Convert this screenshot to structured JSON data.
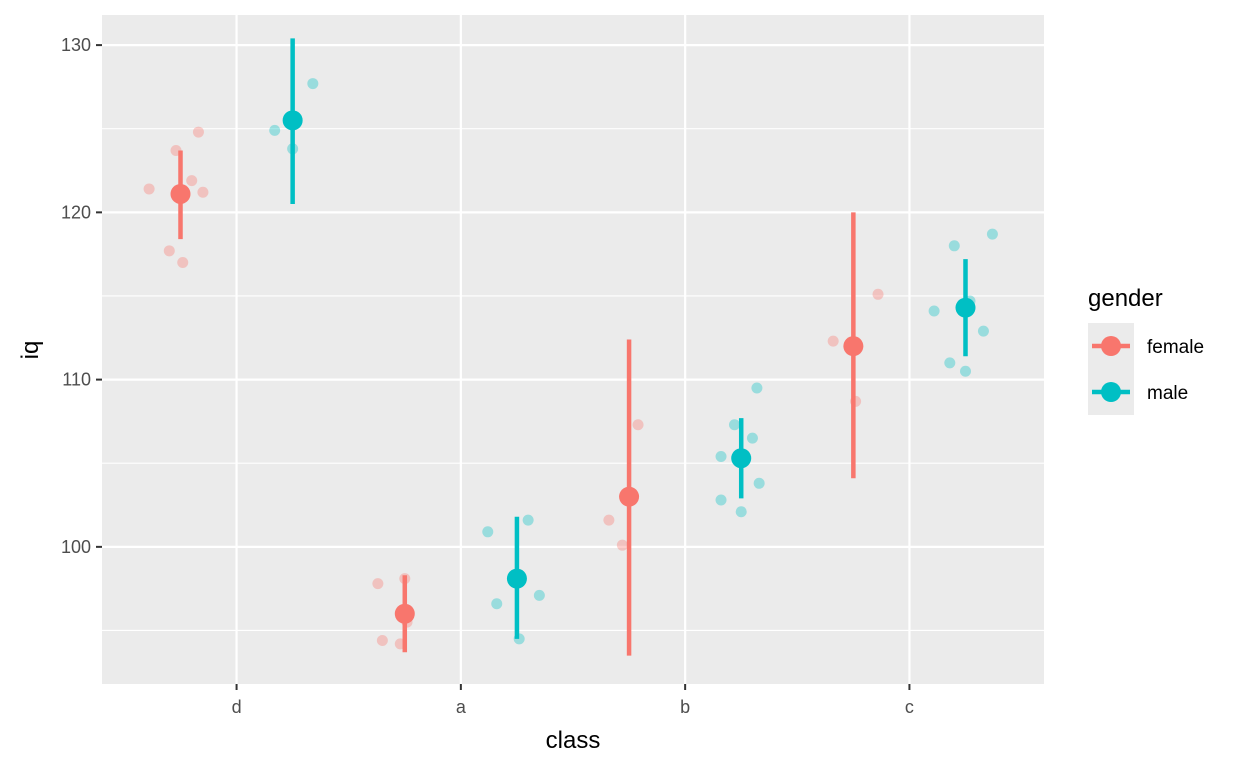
{
  "chart_data": {
    "type": "scatter",
    "title": "",
    "xlabel": "class",
    "ylabel": "iq",
    "categories": [
      "d",
      "a",
      "b",
      "c"
    ],
    "ylim": [
      91.8,
      131.8
    ],
    "yticks": [
      100,
      110,
      120,
      130
    ],
    "yminor": [
      95,
      105,
      115,
      125
    ],
    "grid": true,
    "legend": {
      "title": "gender",
      "position": "right",
      "entries": [
        {
          "name": "female",
          "color": "#F8766D"
        },
        {
          "name": "male",
          "color": "#00BFC4"
        }
      ]
    },
    "series": [
      {
        "name": "female",
        "color": "#F8766D",
        "summary": [
          {
            "category": "d",
            "mean": 121.1,
            "lower": 118.4,
            "upper": 123.7
          },
          {
            "category": "a",
            "mean": 96.0,
            "lower": 93.7,
            "upper": 98.3
          },
          {
            "category": "b",
            "mean": 103.0,
            "lower": 93.5,
            "upper": 112.4
          },
          {
            "category": "c",
            "mean": 112.0,
            "lower": 104.1,
            "upper": 120.0
          }
        ],
        "points": [
          {
            "category": "d",
            "jitter": -0.39,
            "y": 121.4
          },
          {
            "category": "d",
            "jitter": -0.3,
            "y": 117.7
          },
          {
            "category": "d",
            "jitter": -0.27,
            "y": 123.7
          },
          {
            "category": "d",
            "jitter": -0.24,
            "y": 117.0
          },
          {
            "category": "d",
            "jitter": -0.2,
            "y": 121.9
          },
          {
            "category": "d",
            "jitter": -0.17,
            "y": 124.8
          },
          {
            "category": "d",
            "jitter": -0.15,
            "y": 121.2
          },
          {
            "category": "a",
            "jitter": -0.37,
            "y": 97.8
          },
          {
            "category": "a",
            "jitter": -0.35,
            "y": 94.4
          },
          {
            "category": "a",
            "jitter": -0.27,
            "y": 94.2
          },
          {
            "category": "a",
            "jitter": -0.25,
            "y": 98.1
          },
          {
            "category": "a",
            "jitter": -0.24,
            "y": 95.5
          },
          {
            "category": "b",
            "jitter": -0.34,
            "y": 101.6
          },
          {
            "category": "b",
            "jitter": -0.28,
            "y": 100.1
          },
          {
            "category": "b",
            "jitter": -0.21,
            "y": 107.3
          },
          {
            "category": "c",
            "jitter": -0.34,
            "y": 112.3
          },
          {
            "category": "c",
            "jitter": -0.24,
            "y": 108.7
          },
          {
            "category": "c",
            "jitter": -0.14,
            "y": 115.1
          }
        ]
      },
      {
        "name": "male",
        "color": "#00BFC4",
        "summary": [
          {
            "category": "d",
            "mean": 125.5,
            "lower": 120.5,
            "upper": 130.4
          },
          {
            "category": "a",
            "mean": 98.1,
            "lower": 94.5,
            "upper": 101.8
          },
          {
            "category": "b",
            "mean": 105.3,
            "lower": 102.9,
            "upper": 107.7
          },
          {
            "category": "c",
            "mean": 114.3,
            "lower": 111.4,
            "upper": 117.2
          }
        ],
        "points": [
          {
            "category": "d",
            "jitter": 0.17,
            "y": 124.9
          },
          {
            "category": "d",
            "jitter": 0.25,
            "y": 123.8
          },
          {
            "category": "d",
            "jitter": 0.34,
            "y": 127.7
          },
          {
            "category": "a",
            "jitter": 0.12,
            "y": 100.9
          },
          {
            "category": "a",
            "jitter": 0.16,
            "y": 96.6
          },
          {
            "category": "a",
            "jitter": 0.26,
            "y": 94.5
          },
          {
            "category": "a",
            "jitter": 0.3,
            "y": 101.6
          },
          {
            "category": "a",
            "jitter": 0.35,
            "y": 97.1
          },
          {
            "category": "b",
            "jitter": 0.16,
            "y": 102.8
          },
          {
            "category": "b",
            "jitter": 0.16,
            "y": 105.4
          },
          {
            "category": "b",
            "jitter": 0.22,
            "y": 107.3
          },
          {
            "category": "b",
            "jitter": 0.25,
            "y": 102.1
          },
          {
            "category": "b",
            "jitter": 0.3,
            "y": 106.5
          },
          {
            "category": "b",
            "jitter": 0.33,
            "y": 103.8
          },
          {
            "category": "b",
            "jitter": 0.32,
            "y": 109.5
          },
          {
            "category": "c",
            "jitter": 0.11,
            "y": 114.1
          },
          {
            "category": "c",
            "jitter": 0.18,
            "y": 111.0
          },
          {
            "category": "c",
            "jitter": 0.2,
            "y": 118.0
          },
          {
            "category": "c",
            "jitter": 0.25,
            "y": 110.5
          },
          {
            "category": "c",
            "jitter": 0.27,
            "y": 114.7
          },
          {
            "category": "c",
            "jitter": 0.33,
            "y": 112.9
          },
          {
            "category": "c",
            "jitter": 0.37,
            "y": 118.7
          }
        ]
      }
    ]
  }
}
